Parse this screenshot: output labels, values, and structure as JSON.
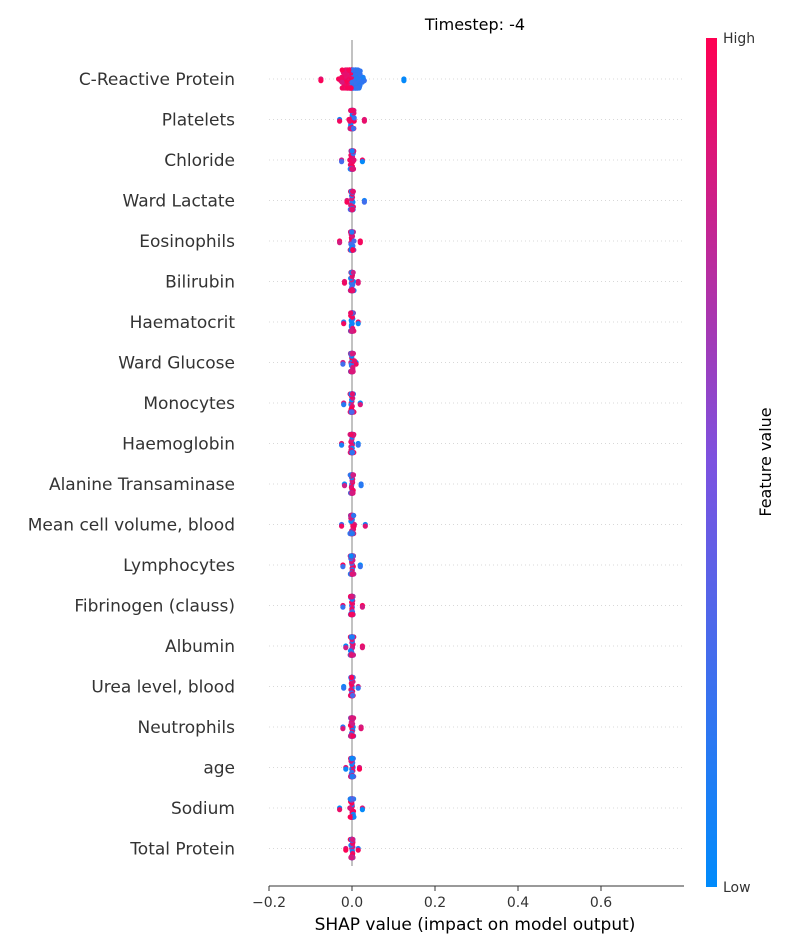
{
  "chart_data": {
    "type": "scatter",
    "title": "Timestep: -4",
    "xlabel": "SHAP value (impact on model output)",
    "ylabel": "",
    "xlim": [
      -0.2,
      0.8
    ],
    "xticks": [
      "−0.2",
      "0.0",
      "0.2",
      "0.4",
      "0.6"
    ],
    "xtick_values": [
      -0.2,
      0.0,
      0.2,
      0.4,
      0.6
    ],
    "grid": false,
    "colorbar": {
      "label": "Feature value",
      "high": "High",
      "low": "Low",
      "colors": [
        "#008bfb",
        "#7c52e0",
        "#ff0052"
      ]
    },
    "features": [
      {
        "name": "C-Reactive Protein",
        "min": -0.075,
        "max": 0.125,
        "spread": 0.06
      },
      {
        "name": "Platelets",
        "min": -0.03,
        "max": 0.03,
        "spread": 0.012
      },
      {
        "name": "Chloride",
        "min": -0.025,
        "max": 0.025,
        "spread": 0.01
      },
      {
        "name": "Ward Lactate",
        "min": -0.012,
        "max": 0.03,
        "spread": 0.008
      },
      {
        "name": "Eosinophils",
        "min": -0.03,
        "max": 0.02,
        "spread": 0.01
      },
      {
        "name": "Bilirubin",
        "min": -0.018,
        "max": 0.015,
        "spread": 0.008
      },
      {
        "name": "Haematocrit",
        "min": -0.02,
        "max": 0.015,
        "spread": 0.008
      },
      {
        "name": "Ward Glucose",
        "min": -0.022,
        "max": 0.01,
        "spread": 0.008
      },
      {
        "name": "Monocytes",
        "min": -0.02,
        "max": 0.02,
        "spread": 0.008
      },
      {
        "name": "Haemoglobin",
        "min": -0.025,
        "max": 0.015,
        "spread": 0.008
      },
      {
        "name": "Alanine Transaminase",
        "min": -0.018,
        "max": 0.022,
        "spread": 0.008
      },
      {
        "name": "Mean cell volume, blood",
        "min": -0.025,
        "max": 0.032,
        "spread": 0.01
      },
      {
        "name": "Lymphocytes",
        "min": -0.022,
        "max": 0.02,
        "spread": 0.008
      },
      {
        "name": "Fibrinogen (clauss)",
        "min": -0.022,
        "max": 0.025,
        "spread": 0.008
      },
      {
        "name": "Albumin",
        "min": -0.015,
        "max": 0.025,
        "spread": 0.008
      },
      {
        "name": "Urea level, blood",
        "min": -0.02,
        "max": 0.015,
        "spread": 0.008
      },
      {
        "name": "Neutrophils",
        "min": -0.022,
        "max": 0.022,
        "spread": 0.008
      },
      {
        "name": "age",
        "min": -0.015,
        "max": 0.018,
        "spread": 0.007
      },
      {
        "name": "Sodium",
        "min": -0.03,
        "max": 0.025,
        "spread": 0.01
      },
      {
        "name": "Total Protein",
        "min": -0.015,
        "max": 0.015,
        "spread": 0.007
      }
    ]
  }
}
